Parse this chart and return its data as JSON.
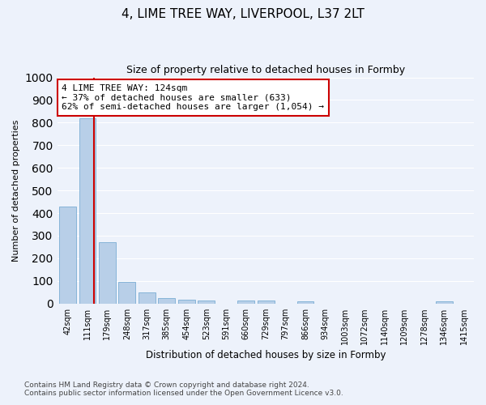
{
  "title": "4, LIME TREE WAY, LIVERPOOL, L37 2LT",
  "subtitle": "Size of property relative to detached houses in Formby",
  "xlabel": "Distribution of detached houses by size in Formby",
  "ylabel": "Number of detached properties",
  "bar_color": "#b8cfe8",
  "bar_edge_color": "#7aadd4",
  "background_color": "#edf2fb",
  "grid_color": "#ffffff",
  "categories": [
    "42sqm",
    "111sqm",
    "179sqm",
    "248sqm",
    "317sqm",
    "385sqm",
    "454sqm",
    "523sqm",
    "591sqm",
    "660sqm",
    "729sqm",
    "797sqm",
    "866sqm",
    "934sqm",
    "1003sqm",
    "1072sqm",
    "1140sqm",
    "1209sqm",
    "1278sqm",
    "1346sqm",
    "1415sqm"
  ],
  "values": [
    430,
    820,
    270,
    95,
    50,
    25,
    18,
    12,
    0,
    12,
    12,
    0,
    8,
    0,
    0,
    0,
    0,
    0,
    0,
    10,
    0
  ],
  "ylim": [
    0,
    1000
  ],
  "yticks": [
    0,
    100,
    200,
    300,
    400,
    500,
    600,
    700,
    800,
    900,
    1000
  ],
  "property_label": "4 LIME TREE WAY: 124sqm",
  "annotation_line1": "← 37% of detached houses are smaller (633)",
  "annotation_line2": "62% of semi-detached houses are larger (1,054) →",
  "annotation_box_color": "#ffffff",
  "annotation_box_edge_color": "#cc0000",
  "vline_color": "#cc0000",
  "footnote1": "Contains HM Land Registry data © Crown copyright and database right 2024.",
  "footnote2": "Contains public sector information licensed under the Open Government Licence v3.0."
}
